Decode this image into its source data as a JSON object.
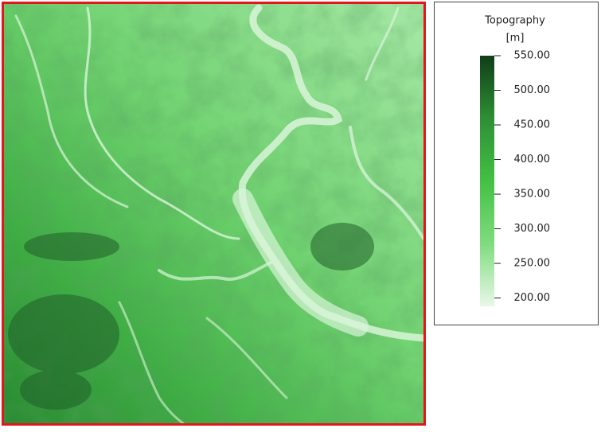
{
  "legend": {
    "title": "Topography",
    "unit": "[m]",
    "range": [
      188,
      550
    ],
    "colors": [
      "#e8f8e8",
      "#7fdc7f",
      "#43c043",
      "#2e8f35",
      "#0f3d18"
    ],
    "ticks": [
      {
        "value": 550,
        "label": "550.00"
      },
      {
        "value": 500,
        "label": "500.00"
      },
      {
        "value": 450,
        "label": "450.00"
      },
      {
        "value": 400,
        "label": "400.00"
      },
      {
        "value": 350,
        "label": "350.00"
      },
      {
        "value": 300,
        "label": "300.00"
      },
      {
        "value": 250,
        "label": "250.00"
      },
      {
        "value": 200,
        "label": "200.00"
      }
    ]
  }
}
